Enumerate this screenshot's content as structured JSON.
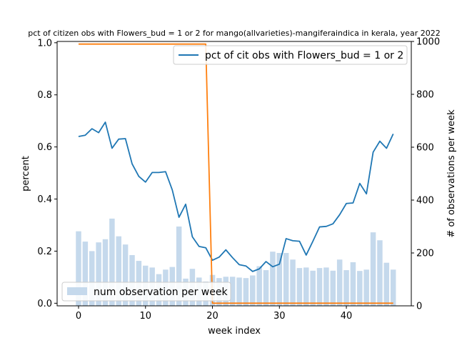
{
  "chart_data": {
    "type": "bar+line",
    "title": "pct of citizen obs with Flowers_bud = 1 or 2 for mango(allvarieties)-mangiferaindica in kerala, year 2022",
    "xlabel": "week index",
    "ylabel_left": "percent",
    "ylabel_right": "# of observations per week",
    "xlim": [
      -3.2,
      49.7
    ],
    "ylim_left": [
      -0.01,
      1.005
    ],
    "ylim_right": [
      0,
      1000
    ],
    "xticks": [
      0,
      10,
      20,
      30,
      40
    ],
    "yticks_left": [
      0.0,
      0.2,
      0.4,
      0.6,
      0.8,
      1.0
    ],
    "yticks_right": [
      0,
      200,
      400,
      600,
      800,
      1000
    ],
    "weeks": [
      0,
      1,
      2,
      3,
      4,
      5,
      6,
      7,
      8,
      9,
      10,
      11,
      12,
      13,
      14,
      15,
      16,
      17,
      18,
      19,
      20,
      21,
      22,
      23,
      24,
      25,
      26,
      27,
      28,
      29,
      30,
      31,
      32,
      33,
      34,
      35,
      36,
      37,
      38,
      39,
      40,
      41,
      42,
      43,
      44,
      45,
      46,
      47
    ],
    "series": [
      {
        "name": "pct of cit obs with Flowers_bud = 1 or 2",
        "kind": "line",
        "axis": "left",
        "color": "#1f77b4",
        "values": [
          0.64,
          0.645,
          0.67,
          0.655,
          0.695,
          0.595,
          0.63,
          0.632,
          0.535,
          0.487,
          0.465,
          0.502,
          0.502,
          0.505,
          0.435,
          0.33,
          0.38,
          0.255,
          0.218,
          0.213,
          0.165,
          0.177,
          0.205,
          0.175,
          0.148,
          0.143,
          0.122,
          0.132,
          0.16,
          0.14,
          0.15,
          0.248,
          0.24,
          0.238,
          0.185,
          0.238,
          0.293,
          0.295,
          0.305,
          0.34,
          0.383,
          0.385,
          0.46,
          0.42,
          0.58,
          0.622,
          0.595,
          0.65
        ]
      },
      {
        "name": "num observation per week",
        "kind": "bar",
        "axis": "right",
        "color": "#c5d9ec",
        "values": [
          282,
          243,
          207,
          240,
          252,
          330,
          263,
          232,
          192,
          170,
          152,
          145,
          120,
          137,
          147,
          300,
          103,
          140,
          107,
          92,
          117,
          105,
          110,
          110,
          107,
          105,
          115,
          150,
          135,
          205,
          200,
          200,
          175,
          143,
          145,
          133,
          143,
          145,
          133,
          175,
          135,
          165,
          132,
          137,
          278,
          248,
          163,
          137
        ]
      },
      {
        "name": "",
        "kind": "line",
        "axis": "right",
        "color": "#ff7f0e",
        "values": [
          990,
          990,
          990,
          990,
          990,
          990,
          990,
          990,
          990,
          990,
          990,
          990,
          990,
          990,
          990,
          990,
          990,
          990,
          990,
          990,
          10,
          10,
          10,
          10,
          10,
          10,
          10,
          10,
          10,
          10,
          10,
          10,
          10,
          10,
          10,
          10,
          10,
          10,
          10,
          10,
          10,
          10,
          10,
          10,
          10,
          10,
          10,
          10
        ]
      }
    ],
    "legend_line": {
      "label": "pct of cit obs with Flowers_bud = 1 or 2",
      "position": "upper-right"
    },
    "legend_bar": {
      "label": "num observation per week",
      "position": "lower-left"
    },
    "grid": false
  }
}
